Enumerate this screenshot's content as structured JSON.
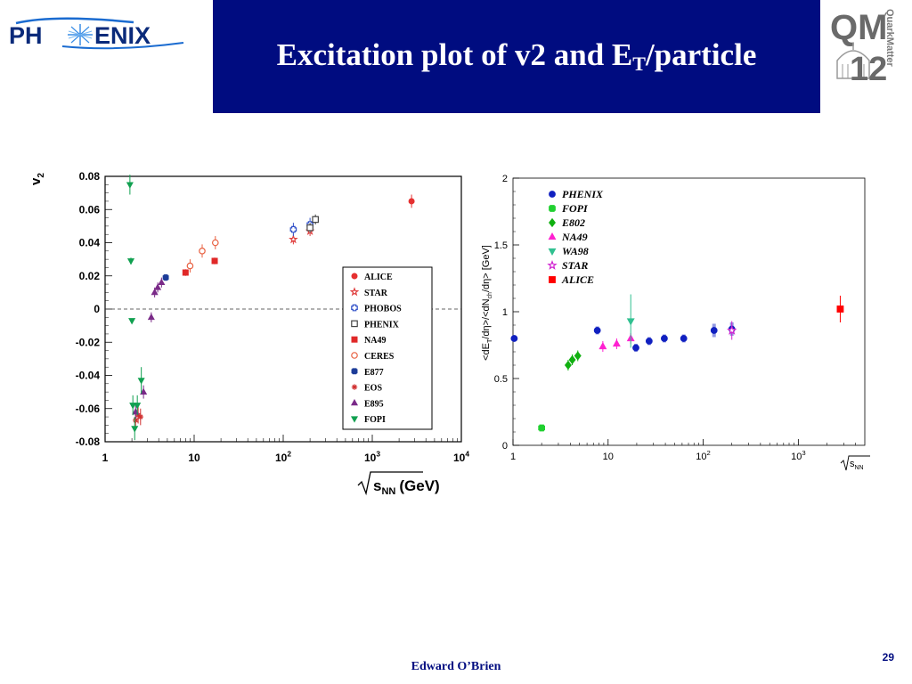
{
  "header": {
    "title_main": "Excitation plot of v2 and E",
    "title_sub": "T",
    "title_tail": "/particle",
    "logo_left_text": "PH",
    "logo_left_text2": "ENIX",
    "logo_right_text": "QM",
    "logo_right_year": "12",
    "logo_right_side": "QuarkMatter",
    "bar_color": "#000c80"
  },
  "footer": {
    "author": "Edward O’Brien",
    "page": "29"
  },
  "chart_data": [
    {
      "type": "scatter",
      "ylabel": "v2",
      "ylabel_main": "v",
      "ylabel_sub": "2",
      "xlabel_main": "s",
      "xlabel_sub": "NN",
      "xlabel_unit": "(GeV)",
      "x_scale": "log",
      "xlim": [
        1,
        10000
      ],
      "ylim": [
        -0.08,
        0.08
      ],
      "x_ticks": [
        {
          "v": 1,
          "m": "1",
          "e": ""
        },
        {
          "v": 10,
          "m": "10",
          "e": ""
        },
        {
          "v": 100,
          "m": "10",
          "e": "2"
        },
        {
          "v": 1000,
          "m": "10",
          "e": "3"
        },
        {
          "v": 10000,
          "m": "10",
          "e": "4"
        }
      ],
      "y_ticks": [
        {
          "v": 0.08,
          "t": "0.08"
        },
        {
          "v": 0.06,
          "t": "0.06"
        },
        {
          "v": 0.04,
          "t": "0.04"
        },
        {
          "v": 0.02,
          "t": "0.02"
        },
        {
          "v": 0,
          "t": "0"
        },
        {
          "v": -0.02,
          "t": "-0.02"
        },
        {
          "v": -0.04,
          "t": "-0.04"
        },
        {
          "v": -0.06,
          "t": "-0.06"
        },
        {
          "v": -0.08,
          "t": "-0.08"
        }
      ],
      "zero_line": "dashed",
      "legend_position": "right",
      "series": [
        {
          "name": "ALICE",
          "color": "#e53030",
          "marker": "circle",
          "points": [
            [
              2760,
              0.065,
              0.004
            ]
          ]
        },
        {
          "name": "STAR",
          "color": "#e04040",
          "marker": "star",
          "points": [
            [
              130,
              0.042,
              0.003
            ],
            [
              200,
              0.047,
              0.003
            ]
          ]
        },
        {
          "name": "PHOBOS",
          "color": "#3050c8",
          "marker": "cross-open",
          "points": [
            [
              130,
              0.048,
              0.004
            ],
            [
              200,
              0.051,
              0.004
            ]
          ]
        },
        {
          "name": "PHENIX",
          "color": "#444444",
          "marker": "square-open",
          "points": [
            [
              200,
              0.049,
              0.003
            ],
            [
              230,
              0.054,
              0.003
            ]
          ]
        },
        {
          "name": "NA49",
          "color": "#e02828",
          "marker": "square",
          "points": [
            [
              8,
              0.022,
              0.002
            ],
            [
              17,
              0.029,
              0.002
            ]
          ]
        },
        {
          "name": "CERES",
          "color": "#e86040",
          "marker": "circle-open",
          "points": [
            [
              9,
              0.026,
              0.004
            ],
            [
              12.3,
              0.035,
              0.004
            ],
            [
              17.3,
              0.04,
              0.004
            ]
          ]
        },
        {
          "name": "E877",
          "color": "#1c3c98",
          "marker": "plus",
          "points": [
            [
              4.8,
              0.019,
              0.002
            ]
          ]
        },
        {
          "name": "EOS",
          "color": "#d03030",
          "marker": "asterisk",
          "points": [
            [
              2.2,
              -0.067,
              0.006
            ],
            [
              2.35,
              -0.064,
              0.005
            ],
            [
              2.5,
              -0.065,
              0.005
            ]
          ]
        },
        {
          "name": "E895",
          "color": "#7a2a88",
          "marker": "triangle",
          "points": [
            [
              2.2,
              -0.062,
              0.004
            ],
            [
              2.7,
              -0.05,
              0.004
            ],
            [
              3.3,
              -0.005,
              0.003
            ],
            [
              3.6,
              0.01,
              0.003
            ],
            [
              3.9,
              0.013,
              0.003
            ],
            [
              4.3,
              0.016,
              0.003
            ]
          ]
        },
        {
          "name": "FOPI",
          "color": "#10a050",
          "marker": "triangle-down",
          "points": [
            [
              1.9,
              0.075,
              0.006
            ],
            [
              1.95,
              0.029,
              0.002
            ],
            [
              2.0,
              -0.007,
              0.001
            ],
            [
              2.05,
              -0.058,
              0.006
            ],
            [
              2.15,
              -0.072,
              0.007
            ],
            [
              2.3,
              -0.058,
              0.006
            ],
            [
              2.55,
              -0.043,
              0.008
            ]
          ]
        }
      ]
    },
    {
      "type": "scatter",
      "ylabel": "<dE_T/dη>/<dN_ch/dη> [GeV]",
      "ylabel_a": "<dE",
      "ylabel_a_sub": "T",
      "ylabel_b": "/dη>/<dN",
      "ylabel_b_sub": "ch",
      "ylabel_c": "/dη> [GeV]",
      "xlabel_main": "s",
      "xlabel_sub": "NN",
      "x_scale": "log",
      "xlim": [
        1,
        5000
      ],
      "ylim": [
        0,
        2
      ],
      "x_ticks": [
        {
          "v": 1,
          "m": "1",
          "e": ""
        },
        {
          "v": 10,
          "m": "10",
          "e": ""
        },
        {
          "v": 100,
          "m": "10",
          "e": "2"
        },
        {
          "v": 1000,
          "m": "10",
          "e": "3"
        }
      ],
      "y_ticks": [
        {
          "v": 0,
          "t": "0"
        },
        {
          "v": 0.5,
          "t": "0.5"
        },
        {
          "v": 1,
          "t": "1"
        },
        {
          "v": 1.5,
          "t": "1.5"
        },
        {
          "v": 2,
          "t": "2"
        }
      ],
      "legend_position": "top-left",
      "series": [
        {
          "name": "PHENIX",
          "color": "#1020c0",
          "marker": "circle",
          "points": [
            [
              1.03,
              0.8,
              0.01
            ],
            [
              7.7,
              0.86,
              0.03
            ],
            [
              19.6,
              0.73,
              0.03
            ],
            [
              27,
              0.78,
              0.03
            ],
            [
              39,
              0.8,
              0.03
            ],
            [
              62.4,
              0.8,
              0.03
            ],
            [
              130,
              0.86,
              0.05
            ],
            [
              200,
              0.87,
              0.05
            ]
          ]
        },
        {
          "name": "FOPI",
          "color": "#20d030",
          "marker": "plus",
          "points": [
            [
              2.0,
              0.13,
              0.02
            ]
          ]
        },
        {
          "name": "E802",
          "color": "#10b010",
          "marker": "diamond",
          "points": [
            [
              3.8,
              0.6,
              0.04
            ],
            [
              4.2,
              0.64,
              0.04
            ],
            [
              4.8,
              0.67,
              0.04
            ]
          ]
        },
        {
          "name": "NA49",
          "color": "#ff20d0",
          "marker": "triangle",
          "points": [
            [
              8.8,
              0.74,
              0.04
            ],
            [
              12.3,
              0.76,
              0.04
            ],
            [
              17.3,
              0.8,
              0.04
            ]
          ]
        },
        {
          "name": "WA98",
          "color": "#30c090",
          "marker": "triangle-down",
          "points": [
            [
              17.3,
              0.93,
              0.2
            ]
          ]
        },
        {
          "name": "STAR",
          "color": "#d020d0",
          "marker": "star",
          "points": [
            [
              200,
              0.86,
              0.07
            ]
          ]
        },
        {
          "name": "ALICE",
          "color": "#ff0000",
          "marker": "square",
          "points": [
            [
              2760,
              1.02,
              0.1
            ]
          ]
        }
      ]
    }
  ]
}
